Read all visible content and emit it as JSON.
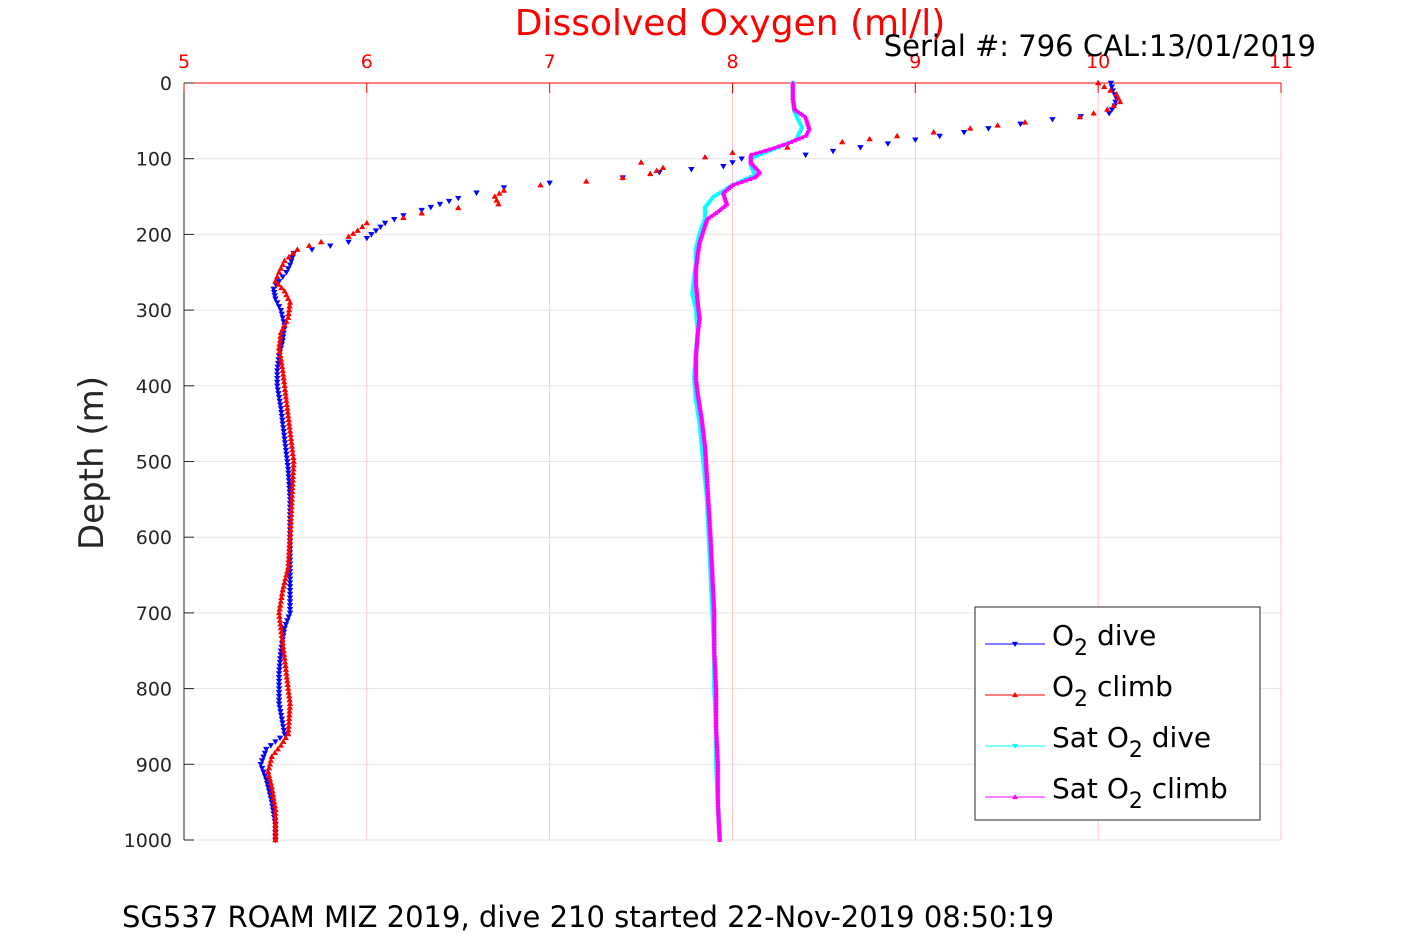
{
  "chart_data": {
    "type": "scatter",
    "title": "Dissolved Oxygen (ml/l)",
    "subtitle": "Serial #: 796  CAL:13/01/2019",
    "caption": "SG537 ROAM MIZ 2019, dive 210 started 22-Nov-2019 08:50:19",
    "xlabel": "Dissolved Oxygen (ml/l)",
    "ylabel": "Depth (m)",
    "xlim": [
      5,
      11
    ],
    "ylim": [
      0,
      1000
    ],
    "y_reversed": true,
    "x_axis_position": "top",
    "x_ticks": [
      5,
      6,
      7,
      8,
      9,
      10,
      11
    ],
    "y_ticks": [
      0,
      100,
      200,
      300,
      400,
      500,
      600,
      700,
      800,
      900,
      1000
    ],
    "grid": true,
    "legend_position": "bottom-right",
    "colors": {
      "title": "#ff0000",
      "x_ticks": "#ff0000",
      "o2_dive": "#0000ff",
      "o2_climb": "#ff0000",
      "sat_dive": "#00ffff",
      "sat_climb": "#ff00ff",
      "grid": "#e6e6e6",
      "x_grid": "#ffc8c8"
    },
    "series": [
      {
        "key": "o2_dive",
        "name": "O2 dive",
        "label_main": "O",
        "label_sub": "2",
        "label_post": " dive",
        "color": "#0000ff",
        "marker": "triangle-down",
        "points": [
          [
            10.07,
            0
          ],
          [
            10.08,
            10
          ],
          [
            10.1,
            20
          ],
          [
            10.09,
            30
          ],
          [
            10.06,
            40
          ],
          [
            9.75,
            48
          ],
          [
            9.4,
            60
          ],
          [
            9.0,
            75
          ],
          [
            8.7,
            85
          ],
          [
            8.4,
            95
          ],
          [
            8.05,
            100
          ],
          [
            7.95,
            110
          ],
          [
            7.6,
            118
          ],
          [
            7.4,
            125
          ],
          [
            7.0,
            132
          ],
          [
            6.75,
            138
          ],
          [
            6.6,
            145
          ],
          [
            6.5,
            152
          ],
          [
            6.4,
            160
          ],
          [
            6.3,
            168
          ],
          [
            6.2,
            175
          ],
          [
            6.1,
            185
          ],
          [
            6.05,
            195
          ],
          [
            6.0,
            205
          ],
          [
            5.8,
            215
          ],
          [
            5.6,
            225
          ],
          [
            5.58,
            240
          ],
          [
            5.56,
            250
          ],
          [
            5.52,
            262
          ],
          [
            5.49,
            272
          ],
          [
            5.5,
            285
          ],
          [
            5.53,
            300
          ],
          [
            5.55,
            320
          ],
          [
            5.54,
            340
          ],
          [
            5.52,
            360
          ],
          [
            5.51,
            380
          ],
          [
            5.51,
            400
          ],
          [
            5.53,
            430
          ],
          [
            5.55,
            470
          ],
          [
            5.57,
            510
          ],
          [
            5.58,
            550
          ],
          [
            5.58,
            600
          ],
          [
            5.58,
            650
          ],
          [
            5.58,
            700
          ],
          [
            5.55,
            720
          ],
          [
            5.53,
            750
          ],
          [
            5.52,
            780
          ],
          [
            5.52,
            820
          ],
          [
            5.55,
            860
          ],
          [
            5.45,
            880
          ],
          [
            5.42,
            900
          ],
          [
            5.45,
            920
          ],
          [
            5.48,
            950
          ],
          [
            5.5,
            980
          ],
          [
            5.5,
            1000
          ]
        ]
      },
      {
        "key": "o2_climb",
        "name": "O2 climb",
        "label_main": "O",
        "label_sub": "2",
        "label_post": " climb",
        "color": "#ff0000",
        "marker": "triangle-up",
        "points": [
          [
            10.0,
            0
          ],
          [
            10.1,
            15
          ],
          [
            10.12,
            25
          ],
          [
            10.05,
            35
          ],
          [
            9.9,
            45
          ],
          [
            9.6,
            52
          ],
          [
            9.3,
            60
          ],
          [
            8.9,
            70
          ],
          [
            8.6,
            78
          ],
          [
            8.3,
            85
          ],
          [
            8.0,
            92
          ],
          [
            7.85,
            98
          ],
          [
            7.5,
            105
          ],
          [
            7.62,
            112
          ],
          [
            7.55,
            120
          ],
          [
            7.4,
            125
          ],
          [
            7.2,
            130
          ],
          [
            6.95,
            135
          ],
          [
            6.75,
            142
          ],
          [
            6.7,
            150
          ],
          [
            6.72,
            160
          ],
          [
            6.5,
            165
          ],
          [
            6.3,
            172
          ],
          [
            6.2,
            178
          ],
          [
            6.0,
            185
          ],
          [
            5.95,
            195
          ],
          [
            5.9,
            203
          ],
          [
            5.75,
            210
          ],
          [
            5.62,
            220
          ],
          [
            5.55,
            235
          ],
          [
            5.52,
            250
          ],
          [
            5.5,
            262
          ],
          [
            5.55,
            275
          ],
          [
            5.58,
            290
          ],
          [
            5.57,
            310
          ],
          [
            5.53,
            330
          ],
          [
            5.52,
            350
          ],
          [
            5.54,
            380
          ],
          [
            5.56,
            420
          ],
          [
            5.58,
            460
          ],
          [
            5.6,
            500
          ],
          [
            5.59,
            550
          ],
          [
            5.58,
            600
          ],
          [
            5.57,
            640
          ],
          [
            5.54,
            670
          ],
          [
            5.52,
            700
          ],
          [
            5.54,
            740
          ],
          [
            5.56,
            780
          ],
          [
            5.58,
            820
          ],
          [
            5.57,
            860
          ],
          [
            5.53,
            875
          ],
          [
            5.48,
            890
          ],
          [
            5.46,
            910
          ],
          [
            5.48,
            930
          ],
          [
            5.5,
            960
          ],
          [
            5.5,
            1000
          ]
        ]
      },
      {
        "key": "sat_dive",
        "name": "Sat O2 dive",
        "label_pre": "Sat ",
        "label_main": "O",
        "label_sub": "2",
        "label_post": " dive",
        "color": "#00ffff",
        "marker": "triangle-down",
        "points": [
          [
            8.33,
            0
          ],
          [
            8.33,
            20
          ],
          [
            8.34,
            40
          ],
          [
            8.38,
            60
          ],
          [
            8.35,
            75
          ],
          [
            8.2,
            90
          ],
          [
            8.1,
            100
          ],
          [
            8.1,
            110
          ],
          [
            8.12,
            122
          ],
          [
            8.0,
            135
          ],
          [
            7.9,
            150
          ],
          [
            7.85,
            165
          ],
          [
            7.85,
            180
          ],
          [
            7.82,
            200
          ],
          [
            7.8,
            220
          ],
          [
            7.8,
            240
          ],
          [
            7.79,
            260
          ],
          [
            7.78,
            280
          ],
          [
            7.8,
            300
          ],
          [
            7.81,
            330
          ],
          [
            7.8,
            360
          ],
          [
            7.79,
            390
          ],
          [
            7.8,
            420
          ],
          [
            7.82,
            450
          ],
          [
            7.84,
            500
          ],
          [
            7.86,
            550
          ],
          [
            7.87,
            600
          ],
          [
            7.88,
            650
          ],
          [
            7.89,
            700
          ],
          [
            7.9,
            750
          ],
          [
            7.9,
            800
          ],
          [
            7.91,
            850
          ],
          [
            7.91,
            900
          ],
          [
            7.92,
            950
          ],
          [
            7.93,
            1000
          ]
        ]
      },
      {
        "key": "sat_climb",
        "name": "Sat O2 climb",
        "label_pre": "Sat ",
        "label_main": "O",
        "label_sub": "2",
        "label_post": " climb",
        "color": "#ff00ff",
        "marker": "triangle-up",
        "points": [
          [
            8.33,
            0
          ],
          [
            8.33,
            20
          ],
          [
            8.34,
            35
          ],
          [
            8.4,
            45
          ],
          [
            8.42,
            60
          ],
          [
            8.4,
            70
          ],
          [
            8.3,
            80
          ],
          [
            8.2,
            88
          ],
          [
            8.1,
            95
          ],
          [
            8.1,
            105
          ],
          [
            8.15,
            118
          ],
          [
            8.12,
            125
          ],
          [
            8.0,
            135
          ],
          [
            7.95,
            145
          ],
          [
            7.97,
            160
          ],
          [
            7.92,
            170
          ],
          [
            7.86,
            180
          ],
          [
            7.84,
            195
          ],
          [
            7.82,
            210
          ],
          [
            7.81,
            225
          ],
          [
            7.8,
            245
          ],
          [
            7.8,
            265
          ],
          [
            7.81,
            290
          ],
          [
            7.82,
            310
          ],
          [
            7.81,
            330
          ],
          [
            7.8,
            360
          ],
          [
            7.8,
            390
          ],
          [
            7.81,
            410
          ],
          [
            7.83,
            440
          ],
          [
            7.85,
            480
          ],
          [
            7.86,
            520
          ],
          [
            7.87,
            560
          ],
          [
            7.88,
            600
          ],
          [
            7.89,
            650
          ],
          [
            7.9,
            700
          ],
          [
            7.9,
            750
          ],
          [
            7.91,
            800
          ],
          [
            7.91,
            850
          ],
          [
            7.92,
            900
          ],
          [
            7.92,
            950
          ],
          [
            7.93,
            1000
          ]
        ]
      }
    ]
  }
}
